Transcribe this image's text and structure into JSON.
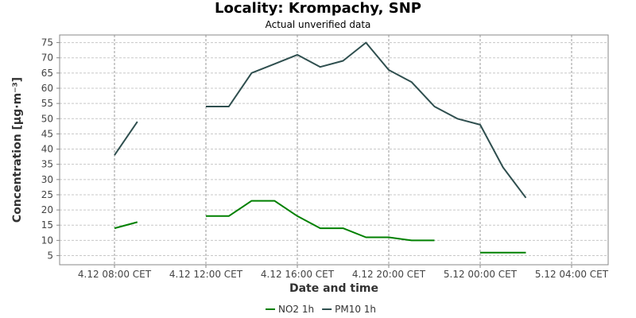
{
  "chart_data": {
    "type": "line",
    "title": "Locality: Krompachy, SNP",
    "subtitle": "Actual unverified data",
    "xlabel": "Date and time",
    "ylabel": "Concentration [µg·m⁻³]",
    "x_tick_labels": [
      "4.12 08:00 CET",
      "4.12 12:00 CET",
      "4.12 16:00 CET",
      "4.12 20:00 CET",
      "5.12 00:00 CET",
      "5.12 04:00 CET"
    ],
    "x_tick_hours": [
      8,
      12,
      16,
      20,
      24,
      28
    ],
    "y_ticks": [
      5,
      10,
      15,
      20,
      25,
      30,
      35,
      40,
      45,
      50,
      55,
      60,
      65,
      70,
      75
    ],
    "xlim_hours": [
      5.6,
      29.6
    ],
    "ylim": [
      2,
      77.5
    ],
    "grid": true,
    "legend_position": "bottom-center",
    "series": [
      {
        "name": "NO2 1h",
        "color": "#008000",
        "points": [
          [
            8,
            14
          ],
          [
            9,
            16
          ],
          [
            null,
            null
          ],
          [
            12,
            18
          ],
          [
            13,
            18
          ],
          [
            14,
            23
          ],
          [
            15,
            23
          ],
          [
            16,
            18
          ],
          [
            17,
            14
          ],
          [
            18,
            14
          ],
          [
            19,
            11
          ],
          [
            20,
            11
          ],
          [
            21,
            10
          ],
          [
            22,
            10
          ],
          [
            null,
            null
          ],
          [
            24,
            6
          ],
          [
            25,
            6
          ],
          [
            26,
            6
          ]
        ]
      },
      {
        "name": "PM10 1h",
        "color": "#2f4f4f",
        "points": [
          [
            8,
            38
          ],
          [
            9,
            49
          ],
          [
            null,
            null
          ],
          [
            12,
            54
          ],
          [
            13,
            54
          ],
          [
            14,
            65
          ],
          [
            15,
            68
          ],
          [
            16,
            71
          ],
          [
            17,
            67
          ],
          [
            18,
            69
          ],
          [
            19,
            75
          ],
          [
            20,
            66
          ],
          [
            21,
            62
          ],
          [
            22,
            54
          ],
          [
            23,
            50
          ],
          [
            24,
            48
          ],
          [
            25,
            34
          ],
          [
            26,
            24
          ]
        ]
      }
    ]
  }
}
